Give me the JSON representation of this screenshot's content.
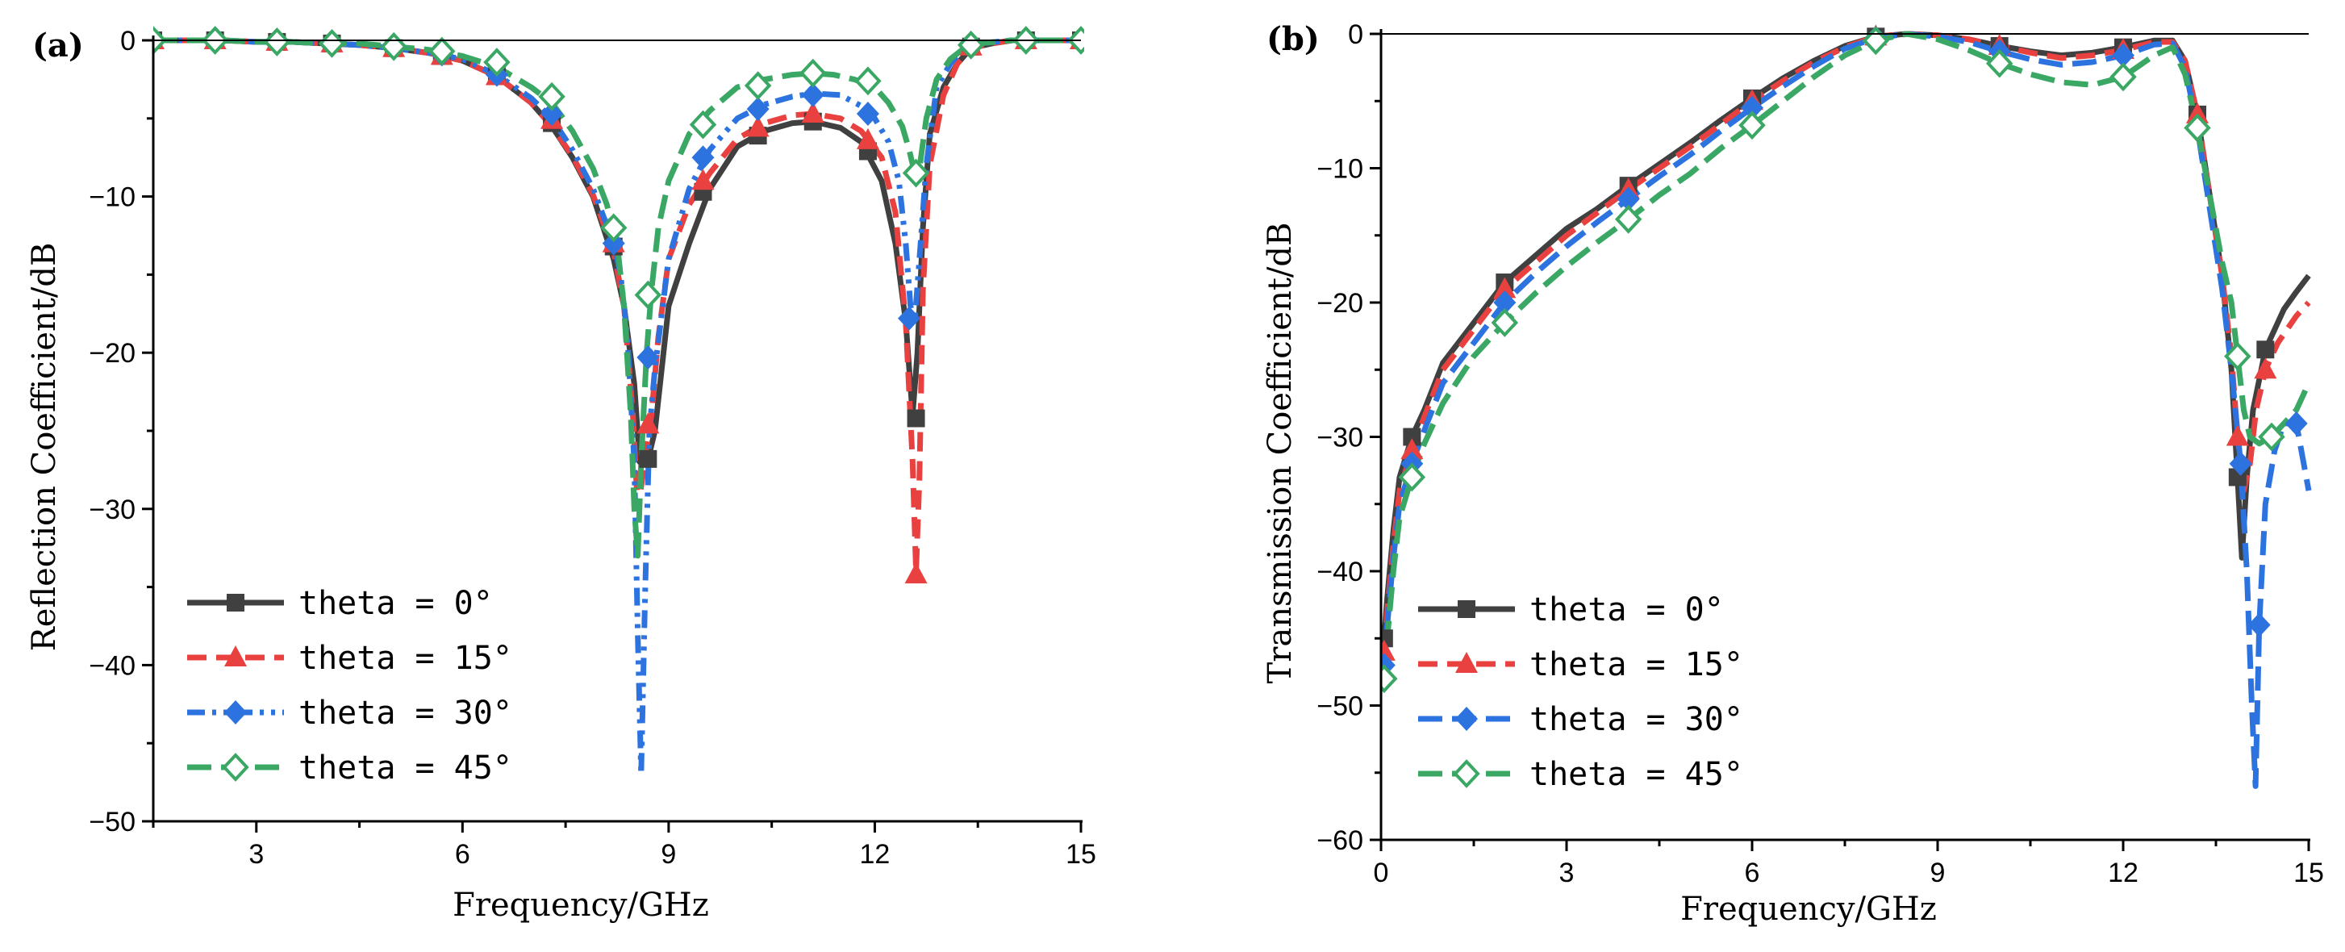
{
  "chart_data": [
    {
      "panel": "(a)",
      "type": "line",
      "xlabel": "Frequency/GHz",
      "ylabel": "Reflection Coefficient/dB",
      "xlim": [
        1.5,
        15
      ],
      "ylim": [
        -50,
        0
      ],
      "xticks": [
        3,
        6,
        9,
        12,
        15
      ],
      "yticks": [
        0,
        -10,
        -20,
        -30,
        -40,
        -50
      ],
      "legend_position": "bottom-left",
      "series": [
        {
          "name": "theta = 0°",
          "color": "#404040",
          "marker": "square",
          "dash": "solid",
          "x": [
            1.5,
            2,
            2.5,
            3,
            3.5,
            4,
            4.5,
            5,
            5.5,
            6,
            6.5,
            7,
            7.3,
            7.6,
            7.9,
            8.2,
            8.35,
            8.5,
            8.58,
            8.65,
            8.72,
            8.8,
            9,
            9.3,
            9.6,
            10,
            10.4,
            10.8,
            11.1,
            11.5,
            11.8,
            12.1,
            12.3,
            12.45,
            12.55,
            12.62,
            12.7,
            12.8,
            13,
            13.2,
            13.4,
            13.7,
            14,
            14.5,
            15
          ],
          "y": [
            0,
            0,
            0,
            -0.1,
            -0.1,
            -0.2,
            -0.3,
            -0.5,
            -0.8,
            -1.3,
            -2.3,
            -4,
            -5.5,
            -7.5,
            -10,
            -14,
            -17,
            -22,
            -27,
            -27,
            -26.5,
            -25,
            -17,
            -13,
            -9.5,
            -6.8,
            -5.8,
            -5.3,
            -5.2,
            -5.6,
            -6.5,
            -9,
            -13,
            -18,
            -24,
            -20,
            -12,
            -6,
            -3,
            -1.5,
            -0.5,
            -0.2,
            0,
            0,
            0
          ],
          "marker_x": [
            1.5,
            2.4,
            3.3,
            4.1,
            5,
            5.7,
            6.5,
            7.3,
            8.2,
            8.7,
            9.5,
            10.3,
            11.1,
            11.9,
            12.6,
            13.4,
            14.2,
            15
          ],
          "marker_y": [
            0,
            0,
            -0.1,
            -0.2,
            -0.5,
            -1,
            -2.3,
            -5.3,
            -13.2,
            -26.8,
            -9.7,
            -6.1,
            -5.2,
            -7.1,
            -24.2,
            -0.4,
            0,
            0
          ]
        },
        {
          "name": "theta = 15°",
          "color": "#e8413f",
          "marker": "triangle",
          "dash": "dash",
          "x": [
            1.5,
            2,
            2.5,
            3,
            3.5,
            4,
            4.5,
            5,
            5.5,
            6,
            6.5,
            7,
            7.3,
            7.6,
            7.9,
            8.2,
            8.35,
            8.48,
            8.55,
            8.62,
            8.68,
            8.75,
            8.85,
            9,
            9.3,
            9.6,
            10,
            10.4,
            10.8,
            11.1,
            11.5,
            11.8,
            12.1,
            12.3,
            12.45,
            12.55,
            12.6,
            12.65,
            12.7,
            12.8,
            13,
            13.2,
            13.4,
            13.7,
            14,
            14.5,
            15
          ],
          "y": [
            0,
            0,
            0,
            -0.1,
            -0.1,
            -0.2,
            -0.3,
            -0.5,
            -0.8,
            -1.3,
            -2.3,
            -4,
            -5.5,
            -7.4,
            -9.9,
            -13.5,
            -17,
            -24,
            -30,
            -28,
            -26,
            -24,
            -19,
            -14,
            -10.5,
            -8.5,
            -6.3,
            -5.3,
            -4.8,
            -4.7,
            -5,
            -5.8,
            -7.5,
            -11,
            -18,
            -27,
            -34,
            -28,
            -16,
            -8,
            -3.5,
            -1.5,
            -0.5,
            -0.2,
            0,
            0,
            0
          ],
          "marker_x": [
            1.5,
            2.4,
            3.3,
            4.1,
            5,
            5.7,
            6.5,
            7.3,
            8.2,
            8.7,
            9.5,
            10.3,
            11.1,
            11.9,
            12.6,
            13.4,
            14.2,
            15
          ],
          "marker_y": [
            0,
            0,
            -0.1,
            -0.2,
            -0.5,
            -1,
            -2.3,
            -5.1,
            -13,
            -24.6,
            -9,
            -5.6,
            -4.7,
            -6.4,
            -34.2,
            -0.4,
            0,
            0
          ]
        },
        {
          "name": "theta = 30°",
          "color": "#2d73e0",
          "marker": "diamond",
          "dash": "dashdotdot",
          "x": [
            1.5,
            2,
            2.5,
            3,
            3.5,
            4,
            4.5,
            5,
            5.5,
            6,
            6.5,
            7,
            7.3,
            7.6,
            7.9,
            8.2,
            8.3,
            8.4,
            8.5,
            8.55,
            8.6,
            8.66,
            8.72,
            8.8,
            9,
            9.3,
            9.6,
            10,
            10.4,
            10.8,
            11.1,
            11.5,
            11.8,
            12,
            12.2,
            12.35,
            12.45,
            12.52,
            12.58,
            12.65,
            12.75,
            12.9,
            13.1,
            13.3,
            13.5,
            14,
            14.5,
            15
          ],
          "y": [
            0,
            0,
            0,
            -0.1,
            -0.1,
            -0.2,
            -0.3,
            -0.5,
            -0.8,
            -1.2,
            -2.2,
            -3.7,
            -5,
            -7,
            -9.5,
            -13,
            -15,
            -19,
            -27,
            -38,
            -47,
            -35,
            -25,
            -21,
            -14,
            -9.5,
            -7,
            -5,
            -4.1,
            -3.6,
            -3.4,
            -3.5,
            -4.2,
            -5,
            -6.5,
            -9,
            -13,
            -17,
            -18,
            -14,
            -8,
            -3,
            -1.5,
            -0.5,
            -0.2,
            0,
            0,
            0
          ],
          "marker_x": [
            1.5,
            2.4,
            3.3,
            4.1,
            5,
            5.7,
            6.5,
            7.3,
            8.2,
            8.7,
            9.5,
            10.3,
            11.1,
            11.9,
            12.5,
            13.4,
            14.2,
            15
          ],
          "marker_y": [
            0,
            0,
            -0.1,
            -0.2,
            -0.5,
            -0.9,
            -2.2,
            -4.7,
            -13,
            -20.3,
            -7.5,
            -4.4,
            -3.5,
            -4.7,
            -17.8,
            -0.4,
            0,
            0
          ]
        },
        {
          "name": "theta = 45°",
          "color": "#3aa864",
          "marker": "diamond-open",
          "dash": "longdash",
          "x": [
            1.5,
            2,
            2.5,
            3,
            3.5,
            4,
            4.5,
            5,
            5.5,
            6,
            6.5,
            7,
            7.3,
            7.6,
            7.9,
            8.1,
            8.25,
            8.35,
            8.45,
            8.5,
            8.55,
            8.6,
            8.68,
            8.75,
            8.85,
            9,
            9.3,
            9.6,
            10,
            10.4,
            10.8,
            11.1,
            11.4,
            11.7,
            12,
            12.2,
            12.4,
            12.5,
            12.58,
            12.65,
            12.75,
            12.9,
            13.1,
            13.3,
            13.5,
            14,
            14.5,
            15
          ],
          "y": [
            0,
            0,
            0,
            -0.1,
            -0.1,
            -0.2,
            -0.2,
            -0.4,
            -0.6,
            -1,
            -1.7,
            -3,
            -4,
            -5.8,
            -8.2,
            -10.5,
            -13,
            -17,
            -24,
            -30,
            -33,
            -27,
            -20,
            -16,
            -12,
            -9,
            -6,
            -4.5,
            -3,
            -2.5,
            -2.2,
            -2.1,
            -2.2,
            -2.5,
            -3,
            -4,
            -5.5,
            -7,
            -8.5,
            -8.2,
            -5,
            -2.5,
            -1.2,
            -0.5,
            -0.2,
            0,
            0,
            0
          ],
          "marker_x": [
            1.5,
            2.4,
            3.3,
            4.1,
            5,
            5.7,
            6.5,
            7.3,
            8.2,
            8.7,
            9.5,
            10.3,
            11.1,
            11.9,
            12.6,
            13.4,
            14.2,
            15
          ],
          "marker_y": [
            0,
            0,
            -0.1,
            -0.2,
            -0.4,
            -0.7,
            -1.4,
            -3.6,
            -12,
            -16.3,
            -5.4,
            -2.9,
            -2.1,
            -2.6,
            -8.5,
            -0.3,
            0,
            0
          ]
        }
      ]
    },
    {
      "panel": "(b)",
      "type": "line",
      "xlabel": "Frequency/GHz",
      "ylabel": "Transmission Coefficient/dB",
      "xlim": [
        0,
        15
      ],
      "ylim": [
        -60,
        0
      ],
      "xticks": [
        0,
        3,
        6,
        9,
        12,
        15
      ],
      "yticks": [
        0,
        -10,
        -20,
        -30,
        -40,
        -50,
        -60
      ],
      "legend_position": "bottom-left",
      "series": [
        {
          "name": "theta = 0°",
          "color": "#404040",
          "marker": "square",
          "dash": "solid",
          "x": [
            0.05,
            0.1,
            0.2,
            0.3,
            0.5,
            0.7,
            1,
            1.5,
            2,
            2.5,
            3,
            3.5,
            4,
            4.5,
            5,
            5.5,
            6,
            6.5,
            7,
            7.5,
            8,
            8.5,
            9,
            9.5,
            10,
            10.5,
            11,
            11.5,
            12,
            12.5,
            12.8,
            13,
            13.2,
            13.4,
            13.6,
            13.75,
            13.85,
            13.92,
            14,
            14.1,
            14.3,
            14.6,
            14.8,
            15
          ],
          "y": [
            -45,
            -42,
            -37,
            -33,
            -30,
            -28,
            -24.5,
            -21.5,
            -18.5,
            -16.5,
            -14.5,
            -13,
            -11.3,
            -9.7,
            -8.1,
            -6.4,
            -4.8,
            -3.3,
            -2,
            -0.9,
            -0.2,
            0,
            -0.1,
            -0.4,
            -0.9,
            -1.3,
            -1.6,
            -1.4,
            -1,
            -0.5,
            -0.5,
            -2,
            -6,
            -12,
            -18,
            -25,
            -33,
            -39,
            -33,
            -28,
            -23.5,
            -20.5,
            -19.2,
            -18
          ]
        },
        {
          "name": "theta = 15°",
          "color": "#e8413f",
          "marker": "triangle",
          "dash": "dash",
          "x": [
            0.05,
            0.1,
            0.2,
            0.3,
            0.5,
            0.7,
            1,
            1.5,
            2,
            2.5,
            3,
            3.5,
            4,
            4.5,
            5,
            5.5,
            6,
            6.5,
            7,
            7.5,
            8,
            8.5,
            9,
            9.5,
            10,
            10.5,
            11,
            11.5,
            12,
            12.5,
            12.8,
            13,
            13.2,
            13.4,
            13.6,
            13.75,
            13.85,
            13.95,
            14.05,
            14.15,
            14.3,
            14.5,
            14.8,
            15
          ],
          "y": [
            -46,
            -43,
            -38,
            -34,
            -31,
            -28.5,
            -25,
            -22,
            -19,
            -17,
            -15,
            -13.3,
            -11.6,
            -10,
            -8.4,
            -6.7,
            -5,
            -3.5,
            -2.1,
            -1,
            -0.2,
            0,
            -0.1,
            -0.4,
            -0.9,
            -1.4,
            -1.8,
            -1.6,
            -1.2,
            -0.6,
            -0.6,
            -2,
            -6,
            -12,
            -18,
            -24,
            -30,
            -34,
            -32,
            -28,
            -25,
            -23,
            -21,
            -20
          ]
        },
        {
          "name": "theta = 30°",
          "color": "#2d73e0",
          "marker": "diamond",
          "dash": "longdash",
          "x": [
            0.05,
            0.1,
            0.2,
            0.3,
            0.5,
            0.7,
            1,
            1.5,
            2,
            2.5,
            3,
            3.5,
            4,
            4.5,
            5,
            5.5,
            6,
            6.5,
            7,
            7.5,
            8,
            8.5,
            9,
            9.5,
            10,
            10.5,
            11,
            11.5,
            12,
            12.5,
            12.8,
            13,
            13.2,
            13.4,
            13.6,
            13.75,
            13.9,
            14,
            14.08,
            14.14,
            14.2,
            14.3,
            14.45,
            14.6,
            14.8,
            15
          ],
          "y": [
            -47,
            -44,
            -39,
            -35,
            -32,
            -29.5,
            -26,
            -23,
            -20,
            -17.8,
            -15.8,
            -14,
            -12.3,
            -10.6,
            -9,
            -7.2,
            -5.5,
            -3.9,
            -2.4,
            -1.1,
            -0.3,
            0,
            -0.2,
            -0.6,
            -1.3,
            -1.9,
            -2.3,
            -2.1,
            -1.6,
            -0.8,
            -0.7,
            -2.5,
            -7,
            -13,
            -19,
            -25,
            -32,
            -40,
            -50,
            -56,
            -44,
            -35,
            -31,
            -29,
            -29,
            -34
          ]
        },
        {
          "name": "theta = 45°",
          "color": "#3aa864",
          "marker": "diamond-open",
          "dash": "longdash",
          "x": [
            0.05,
            0.1,
            0.2,
            0.3,
            0.5,
            0.7,
            1,
            1.5,
            2,
            2.5,
            3,
            3.5,
            4,
            4.5,
            5,
            5.5,
            6,
            6.5,
            7,
            7.5,
            8,
            8.5,
            9,
            9.5,
            10,
            10.5,
            11,
            11.5,
            12,
            12.5,
            12.8,
            13,
            13.2,
            13.4,
            13.6,
            13.75,
            13.85,
            13.95,
            14.05,
            14.2,
            14.4,
            14.6,
            14.8,
            15
          ],
          "y": [
            -48,
            -45,
            -40,
            -36,
            -33,
            -30.5,
            -27.5,
            -24,
            -21.5,
            -19.3,
            -17.3,
            -15.5,
            -13.8,
            -12,
            -10.4,
            -8.5,
            -6.8,
            -5,
            -3.2,
            -1.6,
            -0.5,
            0,
            -0.4,
            -1.2,
            -2.2,
            -3,
            -3.6,
            -3.8,
            -3.2,
            -1.6,
            -1,
            -3,
            -7,
            -12,
            -17,
            -20,
            -24,
            -28,
            -30,
            -30.5,
            -30,
            -29,
            -28,
            -26
          ]
        }
      ]
    }
  ]
}
